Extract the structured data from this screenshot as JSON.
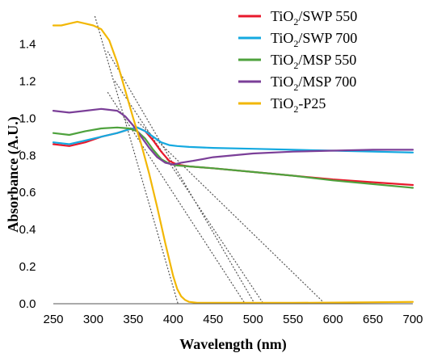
{
  "chart_data": {
    "type": "line",
    "title": "",
    "xlabel": "Wavelength (nm)",
    "ylabel": "Absorbance (A.U.)",
    "xlim": [
      250,
      700
    ],
    "ylim": [
      0,
      1.55
    ],
    "grid": false,
    "legend_position": "top-right",
    "x_ticks": [
      "250",
      "300",
      "350",
      "400",
      "450",
      "500",
      "550",
      "600",
      "650",
      "700"
    ],
    "y_ticks": [
      "0.0",
      "0.2",
      "0.4",
      "0.6",
      "0.8",
      "1.0",
      "1.2",
      "1.4"
    ],
    "series": [
      {
        "name": "TiO2/SWP 550",
        "legend": {
          "main": "TiO",
          "sub": "2",
          "rest": "/SWP  550"
        },
        "color": "#e8192c",
        "x": [
          250,
          270,
          290,
          310,
          330,
          345,
          355,
          365,
          375,
          385,
          395,
          405,
          420,
          450,
          500,
          550,
          600,
          650,
          700
        ],
        "y": [
          0.86,
          0.85,
          0.87,
          0.9,
          0.92,
          0.94,
          0.95,
          0.93,
          0.88,
          0.82,
          0.77,
          0.75,
          0.74,
          0.73,
          0.71,
          0.69,
          0.67,
          0.655,
          0.64
        ]
      },
      {
        "name": "TiO2/SWP 700",
        "legend": {
          "main": "TiO",
          "sub": "2",
          "rest": "/SWP  700"
        },
        "color": "#14a9e0",
        "x": [
          250,
          270,
          290,
          310,
          330,
          345,
          355,
          365,
          375,
          385,
          395,
          405,
          420,
          450,
          500,
          550,
          600,
          650,
          700
        ],
        "y": [
          0.87,
          0.86,
          0.88,
          0.9,
          0.92,
          0.94,
          0.95,
          0.93,
          0.9,
          0.87,
          0.855,
          0.85,
          0.845,
          0.84,
          0.835,
          0.83,
          0.825,
          0.82,
          0.815
        ]
      },
      {
        "name": "TiO2/MSP 550",
        "legend": {
          "main": "TiO",
          "sub": "2",
          "rest": "/MSP  550"
        },
        "color": "#4ea23d",
        "x": [
          250,
          270,
          290,
          310,
          330,
          345,
          355,
          365,
          375,
          385,
          395,
          405,
          420,
          450,
          500,
          550,
          600,
          650,
          700
        ],
        "y": [
          0.92,
          0.91,
          0.93,
          0.945,
          0.95,
          0.945,
          0.93,
          0.89,
          0.83,
          0.78,
          0.755,
          0.745,
          0.74,
          0.73,
          0.71,
          0.69,
          0.665,
          0.645,
          0.625
        ]
      },
      {
        "name": "TiO2/MSP 700",
        "legend": {
          "main": "TiO",
          "sub": "2",
          "rest": "/MSP  700"
        },
        "color": "#7b3f98",
        "x": [
          250,
          270,
          290,
          310,
          330,
          340,
          350,
          360,
          370,
          380,
          390,
          400,
          410,
          425,
          450,
          500,
          550,
          600,
          650,
          700
        ],
        "y": [
          1.04,
          1.03,
          1.04,
          1.05,
          1.04,
          1.01,
          0.96,
          0.9,
          0.84,
          0.79,
          0.76,
          0.75,
          0.76,
          0.77,
          0.79,
          0.81,
          0.82,
          0.825,
          0.83,
          0.83
        ]
      },
      {
        "name": "TiO2-P25",
        "legend": {
          "main": "TiO",
          "sub": "2",
          "rest": "-P25"
        },
        "color": "#f2b705",
        "x": [
          250,
          260,
          270,
          280,
          290,
          300,
          310,
          320,
          330,
          340,
          350,
          360,
          370,
          380,
          390,
          400,
          405,
          410,
          415,
          420,
          430,
          450,
          500,
          550,
          600,
          650,
          700
        ],
        "y": [
          1.5,
          1.5,
          1.51,
          1.52,
          1.51,
          1.5,
          1.48,
          1.42,
          1.3,
          1.15,
          1.0,
          0.86,
          0.7,
          0.52,
          0.33,
          0.15,
          0.08,
          0.04,
          0.02,
          0.01,
          0.005,
          0.005,
          0.005,
          0.005,
          0.006,
          0.008,
          0.01
        ]
      }
    ],
    "tangent_lines": [
      {
        "x1": 302,
        "y1": 1.55,
        "x2": 406,
        "y2": 0.0
      },
      {
        "x1": 318,
        "y1": 1.36,
        "x2": 502,
        "y2": 0.0
      },
      {
        "x1": 327,
        "y1": 1.2,
        "x2": 513,
        "y2": 0.0
      },
      {
        "x1": 318,
        "y1": 1.14,
        "x2": 490,
        "y2": 0.0
      },
      {
        "x1": 356,
        "y1": 0.98,
        "x2": 590,
        "y2": 0.0
      }
    ],
    "tangent_color": "#555555"
  }
}
